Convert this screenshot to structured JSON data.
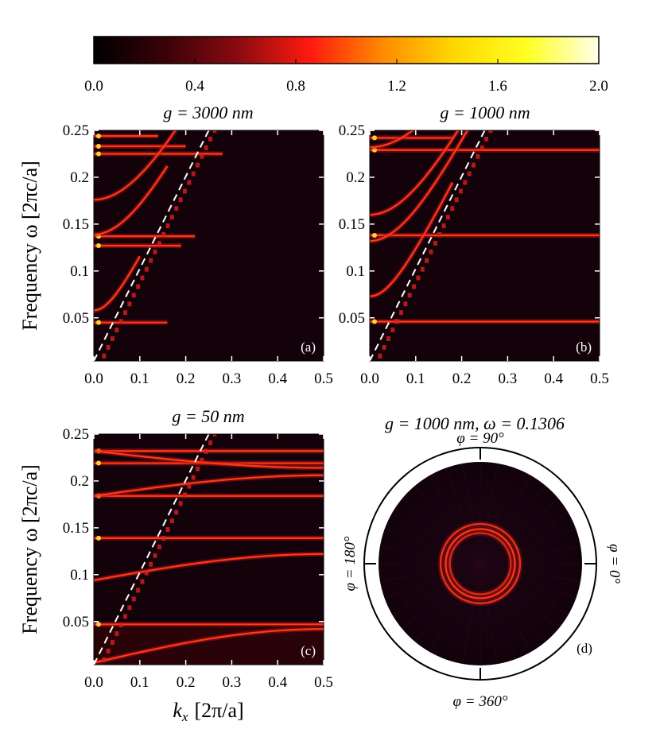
{
  "colorbar": {
    "ticks": [
      "0.0",
      "0.4",
      "0.8",
      "1.2",
      "1.6",
      "2.0"
    ],
    "min": 0.0,
    "max": 2.0,
    "colormap": "hot",
    "stops": [
      "#000000",
      "#3a0208",
      "#8a0a10",
      "#ff1a10",
      "#ff8a00",
      "#ffd800",
      "#ffff22",
      "#ffffe8"
    ]
  },
  "ylabel": "Frequency ω [2πc/a]",
  "xlabel": "k",
  "xlabel_sub": "x",
  "xlabel_unit": "[2π/a]",
  "panels": {
    "a": {
      "title": "g = 3000 nm",
      "tag": "(a)"
    },
    "b": {
      "title": "g = 1000 nm",
      "tag": "(b)"
    },
    "c": {
      "title": "g = 50 nm",
      "tag": "(c)"
    },
    "d": {
      "title": "g = 1000 nm, ω = 0.1306",
      "tag": "(d)",
      "top": "φ = 90°",
      "left": "φ = 180°",
      "right": "φ = 0°",
      "bottom": "φ = 360°"
    }
  },
  "chart_data": [
    {
      "type": "heatmap",
      "panel": "a",
      "title": "g = 3000 nm",
      "xlabel": "",
      "ylabel": "Frequency ω [2πc/a]",
      "xlim": [
        0.0,
        0.5
      ],
      "ylim": [
        0.004,
        0.25
      ],
      "xticks": [
        "0.0",
        "0.1",
        "0.2",
        "0.3",
        "0.4",
        "0.5"
      ],
      "yticks": [
        "0.05",
        "0.1",
        "0.15",
        "0.2",
        "0.25"
      ],
      "light_line": {
        "x": [
          0.0,
          0.25
        ],
        "y": [
          0.0,
          0.25
        ]
      },
      "flat_bands": [
        {
          "omega": 0.045,
          "x_end": 0.16
        },
        {
          "omega": 0.127,
          "x_end": 0.19
        },
        {
          "omega": 0.137,
          "x_end": 0.22
        },
        {
          "omega": 0.225,
          "x_end": 0.28
        },
        {
          "omega": 0.233,
          "x_end": 0.2
        },
        {
          "omega": 0.244,
          "x_end": 0.14
        }
      ],
      "curved_bands": [
        {
          "omega0": 0.058,
          "x_end": 0.1
        },
        {
          "omega0": 0.139,
          "x_end": 0.16
        },
        {
          "omega0": 0.176,
          "x_end": 0.22
        }
      ]
    },
    {
      "type": "heatmap",
      "panel": "b",
      "title": "g = 1000 nm",
      "xlabel": "",
      "ylabel": "",
      "xlim": [
        0.0,
        0.5
      ],
      "ylim": [
        0.004,
        0.25
      ],
      "xticks": [
        "0.0",
        "0.1",
        "0.2",
        "0.3",
        "0.4",
        "0.5"
      ],
      "yticks": [
        "0.05",
        "0.1",
        "0.15",
        "0.2",
        "0.25"
      ],
      "light_line": {
        "x": [
          0.0,
          0.25
        ],
        "y": [
          0.0,
          0.25
        ]
      },
      "flat_bands": [
        {
          "omega": 0.046,
          "x_end": 0.5
        },
        {
          "omega": 0.138,
          "x_end": 0.5
        },
        {
          "omega": 0.229,
          "x_end": 0.5
        },
        {
          "omega": 0.242,
          "x_end": 0.18
        }
      ],
      "curved_bands": [
        {
          "omega0": 0.073,
          "x_end": 0.18
        },
        {
          "omega0": 0.132,
          "x_end": 0.3
        },
        {
          "omega0": 0.16,
          "x_end": 0.24
        },
        {
          "omega0": 0.232,
          "x_end": 0.1
        }
      ]
    },
    {
      "type": "heatmap",
      "panel": "c",
      "title": "g = 50 nm",
      "xlabel": "kx [2π/a]",
      "ylabel": "Frequency ω [2πc/a]",
      "xlim": [
        0.0,
        0.5
      ],
      "ylim": [
        0.004,
        0.25
      ],
      "xticks": [
        "0.0",
        "0.1",
        "0.2",
        "0.3",
        "0.4",
        "0.5"
      ],
      "yticks": [
        "0.05",
        "0.1",
        "0.15",
        "0.2",
        "0.25"
      ],
      "light_line": {
        "x": [
          0.0,
          0.25
        ],
        "y": [
          0.0,
          0.25
        ]
      },
      "flat_bands": [
        {
          "omega": 0.047,
          "x_end": 0.5
        },
        {
          "omega": 0.139,
          "x_end": 0.5
        },
        {
          "omega": 0.184,
          "x_end": 0.5
        },
        {
          "omega": 0.219,
          "x_end": 0.5
        },
        {
          "omega": 0.232,
          "x_end": 0.5
        }
      ],
      "curved_bands": [
        {
          "omega0": 0.006,
          "omega1": 0.042
        },
        {
          "omega0": 0.094,
          "omega1": 0.122
        },
        {
          "omega0": 0.184,
          "omega1": 0.206
        },
        {
          "omega0": 0.232,
          "omega1": 0.214
        }
      ]
    },
    {
      "type": "heatmap",
      "panel": "d",
      "title": "g = 1000 nm, ω = 0.1306",
      "projection": "polar",
      "rings": [
        {
          "radius": 0.39,
          "intensity": 0.85
        },
        {
          "radius": 0.34,
          "intensity": 0.95
        },
        {
          "radius": 0.3,
          "intensity": 0.75
        }
      ],
      "angle_labels": [
        "φ = 90°",
        "φ = 180°",
        "φ = 0°",
        "φ = 360°"
      ]
    }
  ]
}
